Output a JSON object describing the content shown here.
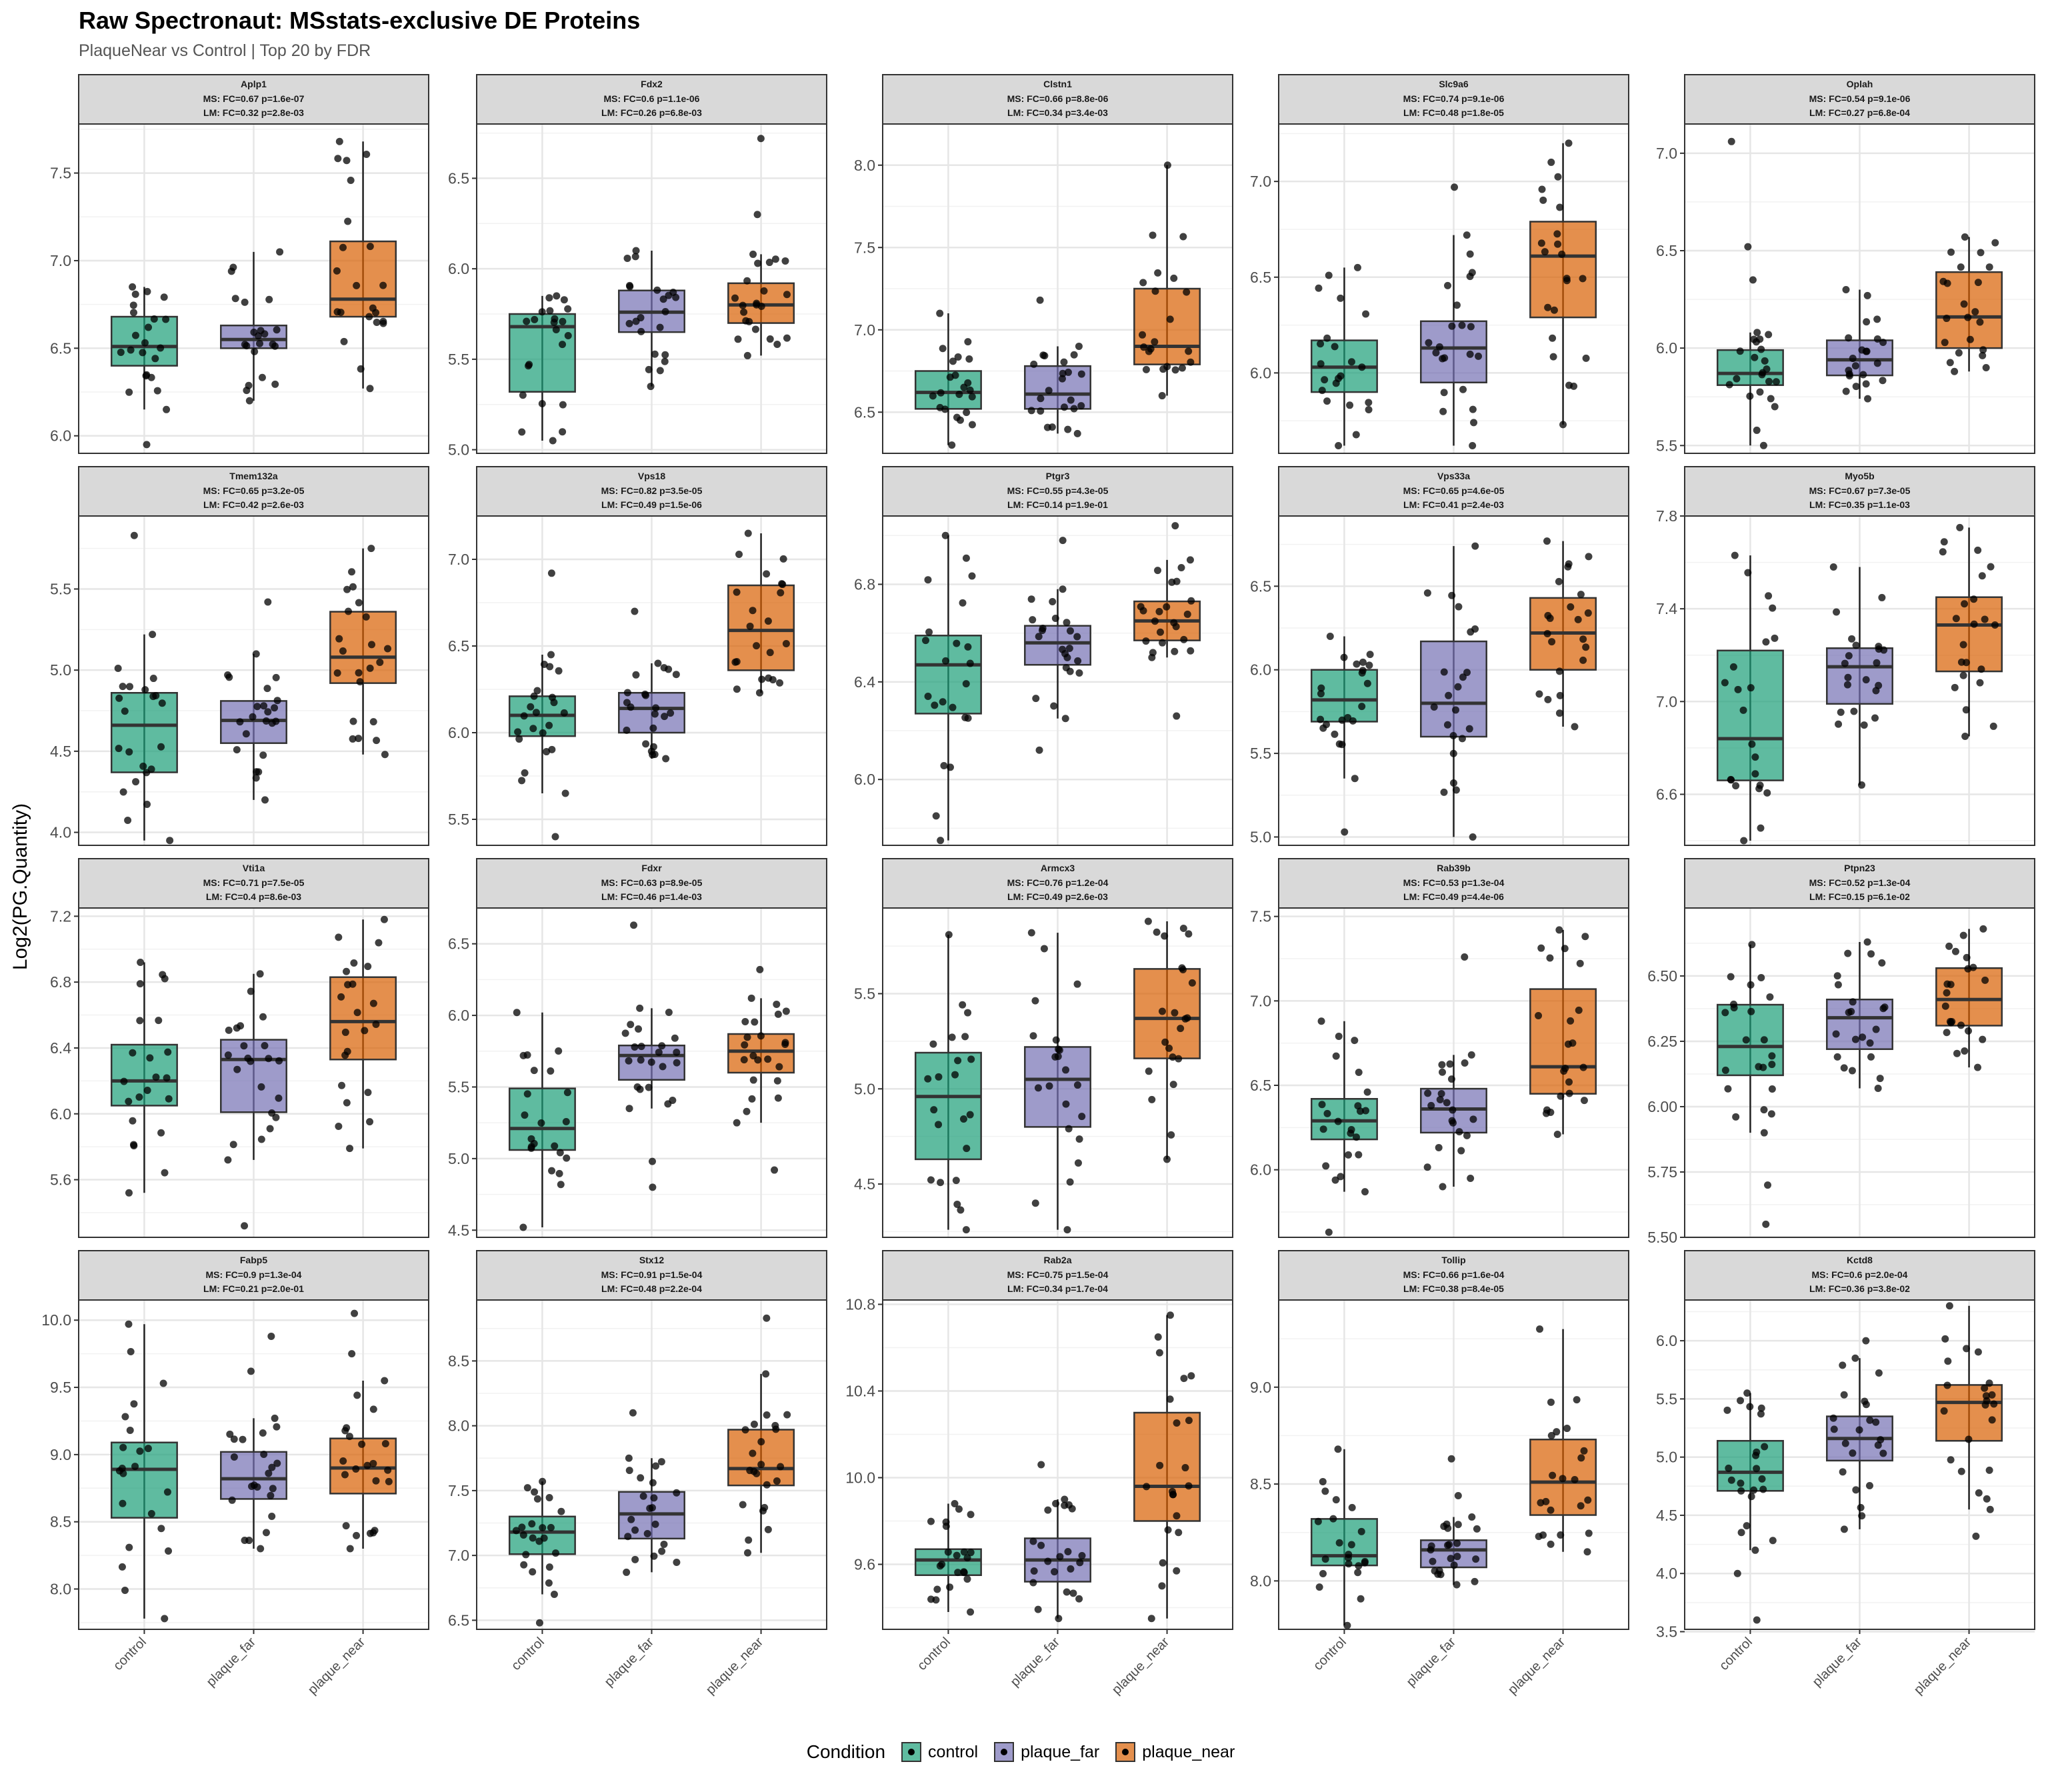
{
  "title": "Raw Spectronaut: MSstats-exclusive DE Proteins",
  "subtitle": "PlaqueNear vs Control | Top 20 by FDR",
  "ylabel": "Log2(PG.Quantity)",
  "legend": {
    "title": "Condition",
    "items": [
      {
        "label": "control",
        "color": "#1b9e77"
      },
      {
        "label": "plaque_far",
        "color": "#7570b3"
      },
      {
        "label": "plaque_near",
        "color": "#d95f02"
      }
    ]
  },
  "chart_data": {
    "type": "box",
    "categories": [
      "control",
      "plaque_far",
      "plaque_near"
    ],
    "stat_order": [
      "whisker_low",
      "q1",
      "median",
      "q3",
      "whisker_high"
    ],
    "panels": [
      {
        "protein": "Aplp1",
        "ms": "MS: FC=0.67 p=1.6e-07",
        "lm": "LM: FC=0.32 p=2.8e-03",
        "ylim": [
          5.9,
          7.78
        ],
        "ticks": [
          "6.0",
          "6.5",
          "7.0",
          "7.5"
        ],
        "boxes": [
          [
            6.15,
            6.4,
            6.51,
            6.68,
            6.85
          ],
          [
            6.2,
            6.5,
            6.55,
            6.63,
            7.05
          ],
          [
            6.27,
            6.68,
            6.78,
            7.11,
            7.68
          ]
        ],
        "outliers": [
          [
            5.95
          ],
          [],
          []
        ]
      },
      {
        "protein": "Fdx2",
        "ms": "MS: FC=0.6 p=1.1e-06",
        "lm": "LM: FC=0.26 p=6.8e-03",
        "ylim": [
          4.98,
          6.8
        ],
        "ticks": [
          "5.0",
          "5.5",
          "6.0",
          "6.5"
        ],
        "boxes": [
          [
            5.05,
            5.32,
            5.68,
            5.75,
            5.85
          ],
          [
            5.35,
            5.65,
            5.76,
            5.88,
            6.1
          ],
          [
            5.52,
            5.7,
            5.8,
            5.92,
            6.08
          ]
        ],
        "outliers": [
          [],
          [],
          [
            6.3,
            6.72
          ]
        ]
      },
      {
        "protein": "Clstn1",
        "ms": "MS: FC=0.66 p=8.8e-06",
        "lm": "LM: FC=0.34 p=3.4e-03",
        "ylim": [
          6.25,
          8.25
        ],
        "ticks": [
          "6.5",
          "7.0",
          "7.5",
          "8.0"
        ],
        "boxes": [
          [
            6.3,
            6.52,
            6.62,
            6.75,
            7.1
          ],
          [
            6.37,
            6.52,
            6.61,
            6.78,
            6.9
          ],
          [
            6.6,
            6.79,
            6.9,
            7.25,
            8.0
          ]
        ],
        "outliers": [
          [],
          [
            7.18
          ],
          []
        ]
      },
      {
        "protein": "Slc9a6",
        "ms": "MS: FC=0.74 p=9.1e-06",
        "lm": "LM: FC=0.48 p=1.8e-05",
        "ylim": [
          5.58,
          7.3
        ],
        "ticks": [
          "6.0",
          "6.5",
          "7.0"
        ],
        "boxes": [
          [
            5.62,
            5.9,
            6.03,
            6.17,
            6.55
          ],
          [
            5.62,
            5.95,
            6.13,
            6.27,
            6.72
          ],
          [
            5.73,
            6.29,
            6.61,
            6.79,
            7.2
          ]
        ],
        "outliers": [
          [],
          [
            6.97
          ],
          []
        ]
      },
      {
        "protein": "Oplah",
        "ms": "MS: FC=0.54 p=9.1e-06",
        "lm": "LM: FC=0.27 p=6.8e-04",
        "ylim": [
          5.46,
          7.15
        ],
        "ticks": [
          "5.5",
          "6.0",
          "6.5",
          "7.0"
        ],
        "boxes": [
          [
            5.5,
            5.81,
            5.87,
            5.99,
            6.08
          ],
          [
            5.74,
            5.86,
            5.94,
            6.04,
            6.3
          ],
          [
            5.88,
            6.0,
            6.16,
            6.39,
            6.57
          ]
        ],
        "outliers": [
          [
            6.35,
            6.52,
            7.06
          ],
          [],
          []
        ]
      },
      {
        "protein": "Tmem132a",
        "ms": "MS: FC=0.65 p=3.2e-05",
        "lm": "LM: FC=0.42 p=2.6e-03",
        "ylim": [
          3.92,
          5.95
        ],
        "ticks": [
          "4.0",
          "4.5",
          "5.0",
          "5.5"
        ],
        "boxes": [
          [
            3.95,
            4.37,
            4.66,
            4.86,
            5.22
          ],
          [
            4.2,
            4.55,
            4.69,
            4.81,
            5.1
          ],
          [
            4.48,
            4.92,
            5.08,
            5.36,
            5.75
          ]
        ],
        "outliers": [
          [
            5.83
          ],
          [
            5.42
          ],
          []
        ]
      },
      {
        "protein": "Vps18",
        "ms": "MS: FC=0.82 p=3.5e-05",
        "lm": "LM: FC=0.49 p=1.5e-06",
        "ylim": [
          5.35,
          7.25
        ],
        "ticks": [
          "5.5",
          "6.0",
          "6.5",
          "7.0"
        ],
        "boxes": [
          [
            5.65,
            5.98,
            6.1,
            6.21,
            6.45
          ],
          [
            5.85,
            6.0,
            6.14,
            6.23,
            6.4
          ],
          [
            6.23,
            6.36,
            6.59,
            6.85,
            7.15
          ]
        ],
        "outliers": [
          [
            6.92,
            5.4
          ],
          [
            6.7
          ],
          []
        ]
      },
      {
        "protein": "Ptgr3",
        "ms": "MS: FC=0.55 p=4.3e-05",
        "lm": "LM: FC=0.14 p=1.9e-01",
        "ylim": [
          5.73,
          7.08
        ],
        "ticks": [
          "6.0",
          "6.4",
          "6.8"
        ],
        "boxes": [
          [
            5.75,
            6.27,
            6.47,
            6.59,
            7.0
          ],
          [
            6.25,
            6.47,
            6.56,
            6.63,
            6.78
          ],
          [
            6.5,
            6.57,
            6.65,
            6.73,
            6.9
          ]
        ],
        "outliers": [
          [],
          [
            6.98,
            6.12
          ],
          [
            7.04,
            6.26
          ]
        ]
      },
      {
        "protein": "Vps33a",
        "ms": "MS: FC=0.65 p=4.6e-05",
        "lm": "LM: FC=0.41 p=2.4e-03",
        "ylim": [
          4.95,
          6.92
        ],
        "ticks": [
          "5.0",
          "5.5",
          "6.0",
          "6.5"
        ],
        "boxes": [
          [
            5.35,
            5.69,
            5.82,
            6.0,
            6.2
          ],
          [
            5.0,
            5.6,
            5.8,
            6.17,
            6.74
          ],
          [
            5.66,
            6.0,
            6.22,
            6.43,
            6.77
          ]
        ],
        "outliers": [
          [
            5.03
          ],
          [],
          []
        ]
      },
      {
        "protein": "Myo5b",
        "ms": "MS: FC=0.67 p=7.3e-05",
        "lm": "LM: FC=0.35 p=1.1e-03",
        "ylim": [
          6.38,
          7.8
        ],
        "ticks": [
          "6.6",
          "7.0",
          "7.4",
          "7.8"
        ],
        "boxes": [
          [
            6.4,
            6.66,
            6.84,
            7.22,
            7.63
          ],
          [
            6.64,
            6.99,
            7.15,
            7.23,
            7.58
          ],
          [
            6.85,
            7.13,
            7.33,
            7.45,
            7.75
          ]
        ],
        "outliers": [
          [],
          [],
          []
        ]
      },
      {
        "protein": "Vti1a",
        "ms": "MS: FC=0.71 p=7.5e-05",
        "lm": "LM: FC=0.4 p=8.6e-03",
        "ylim": [
          5.25,
          7.25
        ],
        "ticks": [
          "5.6",
          "6.0",
          "6.4",
          "6.8",
          "7.2"
        ],
        "boxes": [
          [
            5.52,
            6.05,
            6.2,
            6.42,
            6.92
          ],
          [
            5.72,
            6.01,
            6.33,
            6.45,
            6.85
          ],
          [
            5.79,
            6.33,
            6.56,
            6.83,
            7.18
          ]
        ],
        "outliers": [
          [],
          [
            5.32
          ],
          []
        ]
      },
      {
        "protein": "Fdxr",
        "ms": "MS: FC=0.63 p=8.9e-05",
        "lm": "LM: FC=0.46 p=1.4e-03",
        "ylim": [
          4.45,
          6.75
        ],
        "ticks": [
          "4.5",
          "5.0",
          "5.5",
          "6.0",
          "6.5"
        ],
        "boxes": [
          [
            4.52,
            5.06,
            5.21,
            5.49,
            6.02
          ],
          [
            5.35,
            5.55,
            5.72,
            5.79,
            6.05
          ],
          [
            5.25,
            5.6,
            5.75,
            5.87,
            6.12
          ]
        ],
        "outliers": [
          [],
          [
            6.63,
            4.8,
            4.98
          ],
          [
            6.32,
            4.92
          ]
        ]
      },
      {
        "protein": "Armcx3",
        "ms": "MS: FC=0.76 p=1.2e-04",
        "lm": "LM: FC=0.49 p=2.6e-03",
        "ylim": [
          4.22,
          5.95
        ],
        "ticks": [
          "4.5",
          "5.0",
          "5.5"
        ],
        "boxes": [
          [
            4.26,
            4.63,
            4.96,
            5.19,
            5.81
          ],
          [
            4.26,
            4.8,
            5.05,
            5.22,
            5.82
          ],
          [
            4.63,
            5.16,
            5.37,
            5.63,
            5.88
          ]
        ],
        "outliers": [
          [],
          [],
          []
        ]
      },
      {
        "protein": "Rab39b",
        "ms": "MS: FC=0.53 p=1.3e-04",
        "lm": "LM: FC=0.49 p=4.4e-06",
        "ylim": [
          5.6,
          7.55
        ],
        "ticks": [
          "6.0",
          "6.5",
          "7.0",
          "7.5"
        ],
        "boxes": [
          [
            5.87,
            6.18,
            6.29,
            6.42,
            6.88
          ],
          [
            5.9,
            6.22,
            6.36,
            6.48,
            6.68
          ],
          [
            6.21,
            6.45,
            6.61,
            7.07,
            7.42
          ]
        ],
        "outliers": [
          [
            5.63
          ],
          [
            7.26
          ],
          []
        ]
      },
      {
        "protein": "Ptpn23",
        "ms": "MS: FC=0.52 p=1.3e-04",
        "lm": "LM: FC=0.15 p=6.1e-02",
        "ylim": [
          5.5,
          6.76
        ],
        "ticks": [
          "5.50",
          "5.75",
          "6.00",
          "6.25",
          "6.50"
        ],
        "boxes": [
          [
            5.9,
            6.12,
            6.23,
            6.39,
            6.62
          ],
          [
            6.07,
            6.22,
            6.34,
            6.41,
            6.63
          ],
          [
            6.15,
            6.31,
            6.41,
            6.53,
            6.68
          ]
        ],
        "outliers": [
          [
            5.7,
            5.55
          ],
          [],
          []
        ]
      },
      {
        "protein": "Fabp5",
        "ms": "MS: FC=0.9 p=1.3e-04",
        "lm": "LM: FC=0.21 p=2.0e-01",
        "ylim": [
          7.7,
          10.15
        ],
        "ticks": [
          "8.0",
          "8.5",
          "9.0",
          "9.5",
          "10.0"
        ],
        "boxes": [
          [
            7.78,
            8.53,
            8.89,
            9.09,
            9.97
          ],
          [
            8.3,
            8.67,
            8.82,
            9.02,
            9.27
          ],
          [
            8.3,
            8.71,
            8.9,
            9.12,
            9.55
          ]
        ],
        "outliers": [
          [],
          [
            9.88,
            9.62
          ],
          [
            10.05,
            9.75
          ]
        ]
      },
      {
        "protein": "Stx12",
        "ms": "MS: FC=0.91 p=1.5e-04",
        "lm": "LM: FC=0.48 p=2.2e-04",
        "ylim": [
          6.43,
          8.97
        ],
        "ticks": [
          "6.5",
          "7.0",
          "7.5",
          "8.0",
          "8.5"
        ],
        "boxes": [
          [
            6.7,
            7.01,
            7.18,
            7.3,
            7.57
          ],
          [
            6.87,
            7.13,
            7.32,
            7.49,
            7.75
          ],
          [
            7.02,
            7.54,
            7.67,
            7.97,
            8.4
          ]
        ],
        "outliers": [
          [
            6.48
          ],
          [
            8.1
          ],
          [
            8.83
          ]
        ]
      },
      {
        "protein": "Rab2a",
        "ms": "MS: FC=0.75 p=1.5e-04",
        "lm": "LM: FC=0.34 p=1.7e-04",
        "ylim": [
          9.3,
          10.82
        ],
        "ticks": [
          "9.6",
          "10.0",
          "10.4",
          "10.8"
        ],
        "boxes": [
          [
            9.38,
            9.55,
            9.62,
            9.67,
            9.88
          ],
          [
            9.35,
            9.52,
            9.62,
            9.72,
            9.9
          ],
          [
            9.35,
            9.8,
            9.96,
            10.3,
            10.75
          ]
        ],
        "outliers": [
          [],
          [
            10.06
          ],
          []
        ]
      },
      {
        "protein": "Tollip",
        "ms": "MS: FC=0.66 p=1.6e-04",
        "lm": "LM: FC=0.38 p=8.4e-05",
        "ylim": [
          7.75,
          9.45
        ],
        "ticks": [
          "8.0",
          "8.5",
          "9.0"
        ],
        "boxes": [
          [
            7.77,
            8.08,
            8.13,
            8.32,
            8.68
          ],
          [
            7.98,
            8.07,
            8.16,
            8.21,
            8.33
          ],
          [
            8.15,
            8.34,
            8.51,
            8.73,
            9.3
          ]
        ],
        "outliers": [
          [],
          [
            8.63,
            8.44
          ],
          []
        ]
      },
      {
        "protein": "Kctd8",
        "ms": "MS: FC=0.6 p=2.0e-04",
        "lm": "LM: FC=0.36 p=3.8e-02",
        "ylim": [
          3.52,
          6.35
        ],
        "ticks": [
          "3.5",
          "4.0",
          "4.5",
          "5.0",
          "5.5",
          "6.0"
        ],
        "boxes": [
          [
            4.2,
            4.71,
            4.87,
            5.14,
            5.55
          ],
          [
            4.38,
            4.97,
            5.16,
            5.35,
            5.85
          ],
          [
            4.55,
            5.14,
            5.47,
            5.62,
            6.3
          ]
        ],
        "outliers": [
          [
            3.6,
            4.0
          ],
          [
            6.0
          ],
          [
            4.32
          ]
        ]
      }
    ]
  }
}
